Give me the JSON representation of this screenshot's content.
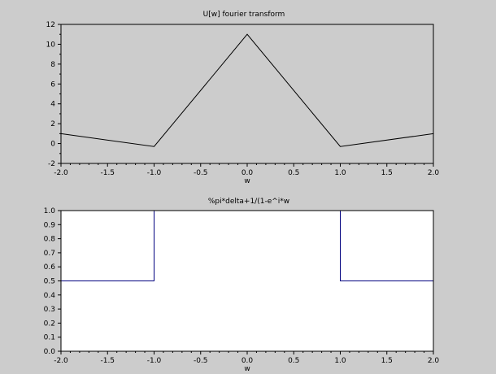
{
  "colors": {
    "figure_background": "#cccccc",
    "axes_background_top": "#cccccc",
    "axes_background_bottom": "#ffffff",
    "line_top": "#000000",
    "line_bottom": "#00007f",
    "axis": "#000000"
  },
  "chart_data": [
    {
      "type": "line",
      "title": "U[w] fourier transform",
      "xlabel": "w",
      "ylabel": "",
      "xlim": [
        -2.0,
        2.0
      ],
      "ylim": [
        -2,
        12
      ],
      "xticks": [
        "-2.0",
        "-1.5",
        "-1.0",
        "-0.5",
        "0.0",
        "0.5",
        "1.0",
        "1.5",
        "2.0"
      ],
      "xtick_values": [
        -2.0,
        -1.5,
        -1.0,
        -0.5,
        0.0,
        0.5,
        1.0,
        1.5,
        2.0
      ],
      "yticks": [
        "-2",
        "0",
        "2",
        "4",
        "6",
        "8",
        "10",
        "12"
      ],
      "ytick_values": [
        -2,
        0,
        2,
        4,
        6,
        8,
        10,
        12
      ],
      "grid": false,
      "series": [
        {
          "x": [
            -2.0,
            -1.0,
            0.0,
            1.0,
            2.0
          ],
          "y": [
            1.0,
            -0.3,
            11.0,
            -0.3,
            1.0
          ],
          "color": "#000000"
        }
      ]
    },
    {
      "type": "line",
      "title": "%pi*delta+1/(1-e^i*w",
      "xlabel": "w",
      "ylabel": "",
      "xlim": [
        -2.0,
        2.0
      ],
      "ylim": [
        0.0,
        1.0
      ],
      "xticks": [
        "-2.0",
        "-1.5",
        "-1.0",
        "-0.5",
        "0.0",
        "0.5",
        "1.0",
        "1.5",
        "2.0"
      ],
      "xtick_values": [
        -2.0,
        -1.5,
        -1.0,
        -0.5,
        0.0,
        0.5,
        1.0,
        1.5,
        2.0
      ],
      "yticks": [
        "0.0",
        "0.1",
        "0.2",
        "0.3",
        "0.4",
        "0.5",
        "0.6",
        "0.7",
        "0.8",
        "0.9",
        "1.0"
      ],
      "ytick_values": [
        0.0,
        0.1,
        0.2,
        0.3,
        0.4,
        0.5,
        0.6,
        0.7,
        0.8,
        0.9,
        1.0
      ],
      "grid": false,
      "series": [
        {
          "x": [
            -2.0,
            -1.0,
            -1.0
          ],
          "y": [
            0.5,
            0.5,
            1.0
          ],
          "color": "#00007f"
        },
        {
          "x": [
            1.0,
            1.0,
            2.0
          ],
          "y": [
            1.0,
            0.5,
            0.5
          ],
          "color": "#00007f"
        }
      ]
    }
  ]
}
